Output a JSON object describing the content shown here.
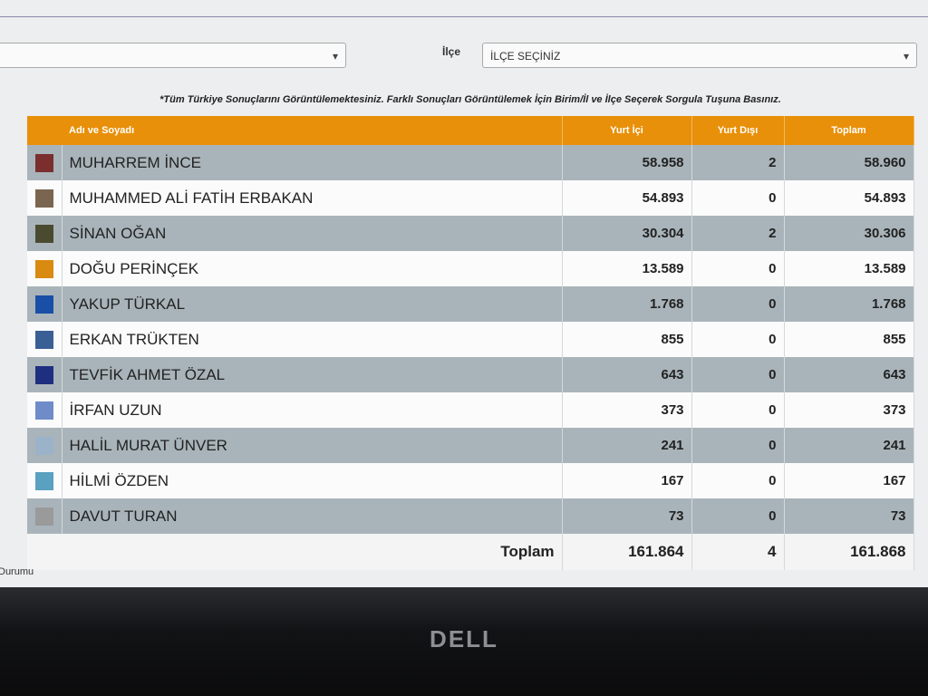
{
  "filters": {
    "left_select": "",
    "ilce_label": "İlçe",
    "ilce_select": "İLÇE SEÇİNİZ"
  },
  "note": "*Tüm Türkiye Sonuçlarını Görüntülemektesiniz. Farklı Sonuçları Görüntülemek İçin Birim/İl ve İlçe Seçerek Sorgula Tuşuna Basınız.",
  "table": {
    "headers": [
      "Adı ve Soyadı",
      "Yurt İçi",
      "Yurt Dışı",
      "Toplam"
    ],
    "rows": [
      {
        "color": "#7a2e2e",
        "name": "MUHARREM İNCE",
        "cells": [
          "58.958",
          "2",
          "58.960"
        ]
      },
      {
        "color": "#7a6650",
        "name": "MUHAMMED ALİ FATİH ERBAKAN",
        "cells": [
          "54.893",
          "0",
          "54.893"
        ]
      },
      {
        "color": "#4a4a30",
        "name": "SİNAN OĞAN",
        "cells": [
          "30.304",
          "2",
          "30.306"
        ]
      },
      {
        "color": "#d98a10",
        "name": "DOĞU PERİNÇEK",
        "cells": [
          "13.589",
          "0",
          "13.589"
        ]
      },
      {
        "color": "#1a4fa8",
        "name": "YAKUP TÜRKAL",
        "cells": [
          "1.768",
          "0",
          "1.768"
        ]
      },
      {
        "color": "#3a5f95",
        "name": "ERKAN TRÜKTEN",
        "cells": [
          "855",
          "0",
          "855"
        ]
      },
      {
        "color": "#1f2f80",
        "name": "TEVFİK AHMET ÖZAL",
        "cells": [
          "643",
          "0",
          "643"
        ]
      },
      {
        "color": "#6f8cc8",
        "name": "İRFAN UZUN",
        "cells": [
          "373",
          "0",
          "373"
        ]
      },
      {
        "color": "#9bb3c8",
        "name": "HALİL MURAT ÜNVER",
        "cells": [
          "241",
          "0",
          "241"
        ]
      },
      {
        "color": "#5aa0c0",
        "name": "HİLMİ ÖZDEN",
        "cells": [
          "167",
          "0",
          "167"
        ]
      },
      {
        "color": "#9a9a9a",
        "name": "DAVUT TURAN",
        "cells": [
          "73",
          "0",
          "73"
        ]
      }
    ],
    "total": {
      "label": "Toplam",
      "cells": [
        "161.864",
        "4",
        "161.868"
      ]
    }
  },
  "footer_text": "Durumu",
  "brand": "DELL"
}
